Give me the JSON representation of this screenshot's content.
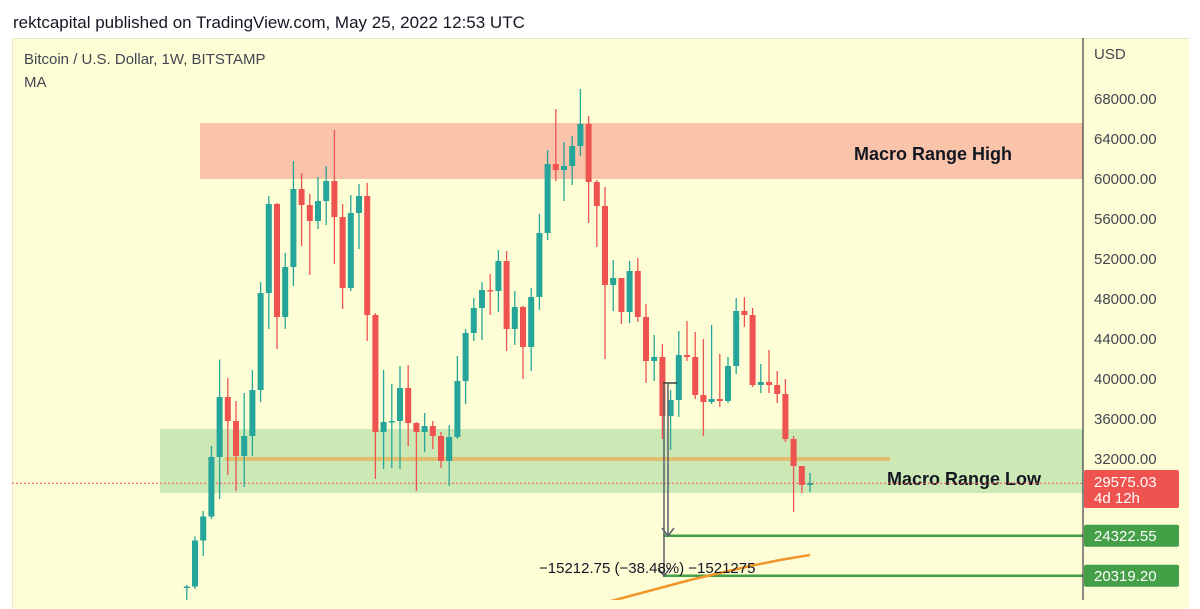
{
  "header": {
    "published": "rektcapital published on TradingView.com, May 25, 2022 12:53 UTC"
  },
  "legend": {
    "symbol": "Bitcoin / U.S. Dollar, 1W, BITSTAMP",
    "indicator": "MA"
  },
  "colors": {
    "up": "#26a69a",
    "down": "#ef5350",
    "background": "#fdfdd6",
    "range_high_zone": "#f9c4aa",
    "range_low_zone": "#cce8b5",
    "level_line": "#e0c070",
    "support_line": "#43a047",
    "ma_line": "#f0962a",
    "price_tag": "#ef5350"
  },
  "chart_data": {
    "type": "candlestick",
    "title": "Bitcoin / U.S. Dollar, 1W, BITSTAMP",
    "ylabel": "USD",
    "ylim": [
      17000,
      73000
    ],
    "grid": false,
    "y_ticks": [
      "68000.00",
      "64000.00",
      "60000.00",
      "56000.00",
      "52000.00",
      "48000.00",
      "44000.00",
      "40000.00",
      "36000.00",
      "32000.00"
    ],
    "candles": [
      [
        19150,
        19400,
        17650,
        19250
      ],
      [
        19250,
        24250,
        19000,
        23850
      ],
      [
        23850,
        26800,
        22300,
        26250
      ],
      [
        26250,
        33300,
        26000,
        32200
      ],
      [
        32200,
        41950,
        28000,
        38200
      ],
      [
        38200,
        40100,
        30400,
        35800
      ],
      [
        35800,
        37800,
        28800,
        32300
      ],
      [
        32300,
        38600,
        29200,
        34300
      ],
      [
        34300,
        40900,
        32300,
        38900
      ],
      [
        38900,
        49700,
        37700,
        48600
      ],
      [
        48600,
        58300,
        45000,
        57500
      ],
      [
        57500,
        57600,
        43000,
        46200
      ],
      [
        46200,
        52600,
        45000,
        51200
      ],
      [
        51200,
        61800,
        49300,
        59000
      ],
      [
        59000,
        60600,
        53300,
        57400
      ],
      [
        57400,
        58500,
        50400,
        55800
      ],
      [
        55800,
        60200,
        55000,
        57800
      ],
      [
        57800,
        61300,
        55400,
        59800
      ],
      [
        59800,
        64900,
        51500,
        56200
      ],
      [
        56200,
        57500,
        47000,
        49100
      ],
      [
        49100,
        58400,
        48800,
        56600
      ],
      [
        56600,
        59500,
        53000,
        58300
      ],
      [
        58300,
        59600,
        43800,
        46400
      ],
      [
        46400,
        46600,
        30000,
        34700
      ],
      [
        34700,
        40900,
        31000,
        35700
      ],
      [
        35700,
        39500,
        31100,
        35800
      ],
      [
        35800,
        41300,
        31000,
        39100
      ],
      [
        39100,
        41400,
        33300,
        35600
      ],
      [
        35600,
        35700,
        28800,
        34700
      ],
      [
        34700,
        36600,
        32700,
        35300
      ],
      [
        35300,
        35800,
        33000,
        34300
      ],
      [
        34300,
        34700,
        31100,
        31800
      ],
      [
        31800,
        35400,
        29300,
        34200
      ],
      [
        34200,
        42300,
        34000,
        39800
      ],
      [
        39800,
        45000,
        37500,
        44600
      ],
      [
        44600,
        48100,
        43800,
        47100
      ],
      [
        47100,
        49700,
        43900,
        48900
      ],
      [
        48900,
        50500,
        46400,
        48800
      ],
      [
        48800,
        52900,
        46700,
        51800
      ],
      [
        51800,
        52800,
        42800,
        45000
      ],
      [
        45000,
        48800,
        43400,
        47200
      ],
      [
        47200,
        47300,
        40000,
        43200
      ],
      [
        43200,
        49100,
        40800,
        48200
      ],
      [
        48200,
        56500,
        46900,
        54600
      ],
      [
        54600,
        62900,
        53900,
        61500
      ],
      [
        61500,
        67000,
        59800,
        60900
      ],
      [
        60900,
        63700,
        57800,
        61300
      ],
      [
        61300,
        64300,
        59400,
        63300
      ],
      [
        63300,
        69000,
        62300,
        65500
      ],
      [
        65500,
        66300,
        55600,
        59700
      ],
      [
        59700,
        59900,
        53200,
        57300
      ],
      [
        57300,
        59200,
        42000,
        49400
      ],
      [
        49400,
        51900,
        46800,
        50100
      ],
      [
        50100,
        50100,
        45500,
        46700
      ],
      [
        46700,
        51800,
        45600,
        50800
      ],
      [
        50800,
        52100,
        45700,
        46200
      ],
      [
        46200,
        47500,
        39600,
        41800
      ],
      [
        41800,
        44400,
        39800,
        42200
      ],
      [
        42200,
        43500,
        34000,
        36300
      ],
      [
        36300,
        38900,
        32900,
        37900
      ],
      [
        37900,
        44800,
        36200,
        42400
      ],
      [
        42400,
        45800,
        41800,
        42200
      ],
      [
        42200,
        44700,
        38000,
        38400
      ],
      [
        38400,
        44000,
        34300,
        37700
      ],
      [
        37700,
        45400,
        37500,
        38000
      ],
      [
        38000,
        42500,
        37200,
        37800
      ],
      [
        37800,
        42200,
        37600,
        41300
      ],
      [
        41300,
        48100,
        40500,
        46800
      ],
      [
        46800,
        48200,
        45200,
        46400
      ],
      [
        46400,
        47100,
        39200,
        39400
      ],
      [
        39400,
        41500,
        38600,
        39700
      ],
      [
        39700,
        42900,
        38600,
        39400
      ],
      [
        39400,
        40800,
        37600,
        38500
      ],
      [
        38500,
        40000,
        33700,
        34000
      ],
      [
        34000,
        34300,
        26700,
        31300
      ],
      [
        31300,
        31300,
        28600,
        29400
      ],
      [
        29400,
        30600,
        28700,
        29575
      ]
    ],
    "ma_values": [
      17500,
      18300,
      19100,
      19900,
      20600,
      21300,
      21900,
      22400
    ],
    "zones": [
      {
        "label": "Macro Range High",
        "low": 60000,
        "high": 65600
      },
      {
        "label": "Macro Range Low",
        "low": 28600,
        "high": 35000
      }
    ],
    "level_line": 32000,
    "current_price": {
      "value": "29575.03",
      "countdown": "4d 12h",
      "level": 29575.03
    },
    "support_levels": [
      {
        "value": "24322.55",
        "level": 24322.55
      },
      {
        "value": "20319.20",
        "level": 20319.2
      }
    ],
    "measure_label": "−15212.75 (−38.48%) −1521275"
  }
}
